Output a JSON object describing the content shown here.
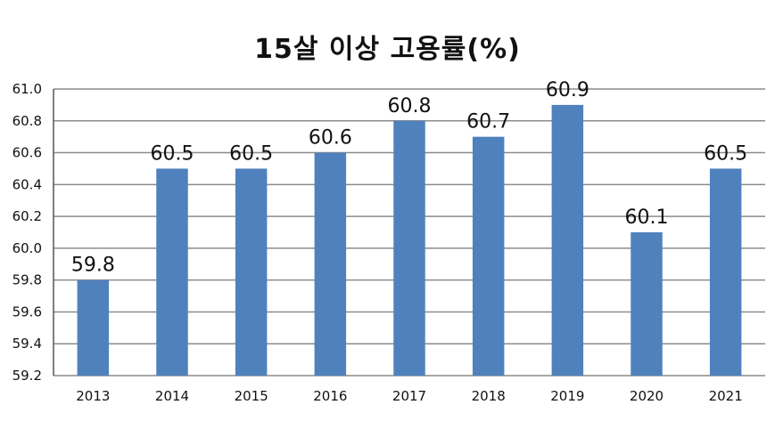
{
  "chart_data": {
    "type": "bar",
    "title": "15살 이상 고용률(%)",
    "xlabel": "",
    "ylabel": "",
    "categories": [
      "2013",
      "2014",
      "2015",
      "2016",
      "2017",
      "2018",
      "2019",
      "2020",
      "2021"
    ],
    "series": [
      {
        "values": [
          59.8,
          60.5,
          60.5,
          60.6,
          60.8,
          60.7,
          60.9,
          60.1,
          60.5
        ]
      }
    ],
    "data_labels": [
      "59.8",
      "60.5",
      "60.5",
      "60.6",
      "60.8",
      "60.7",
      "60.9",
      "60.1",
      "60.5"
    ],
    "ylim": [
      59.2,
      61.0
    ],
    "yticks": [
      "59.2",
      "59.4",
      "59.6",
      "59.8",
      "60.0",
      "60.2",
      "60.4",
      "60.6",
      "60.8",
      "61.0"
    ],
    "grid": true,
    "legend": "none",
    "colors": {
      "bar": "#4f81bd",
      "grid": "#8c8c8c",
      "axis": "#555555"
    }
  }
}
